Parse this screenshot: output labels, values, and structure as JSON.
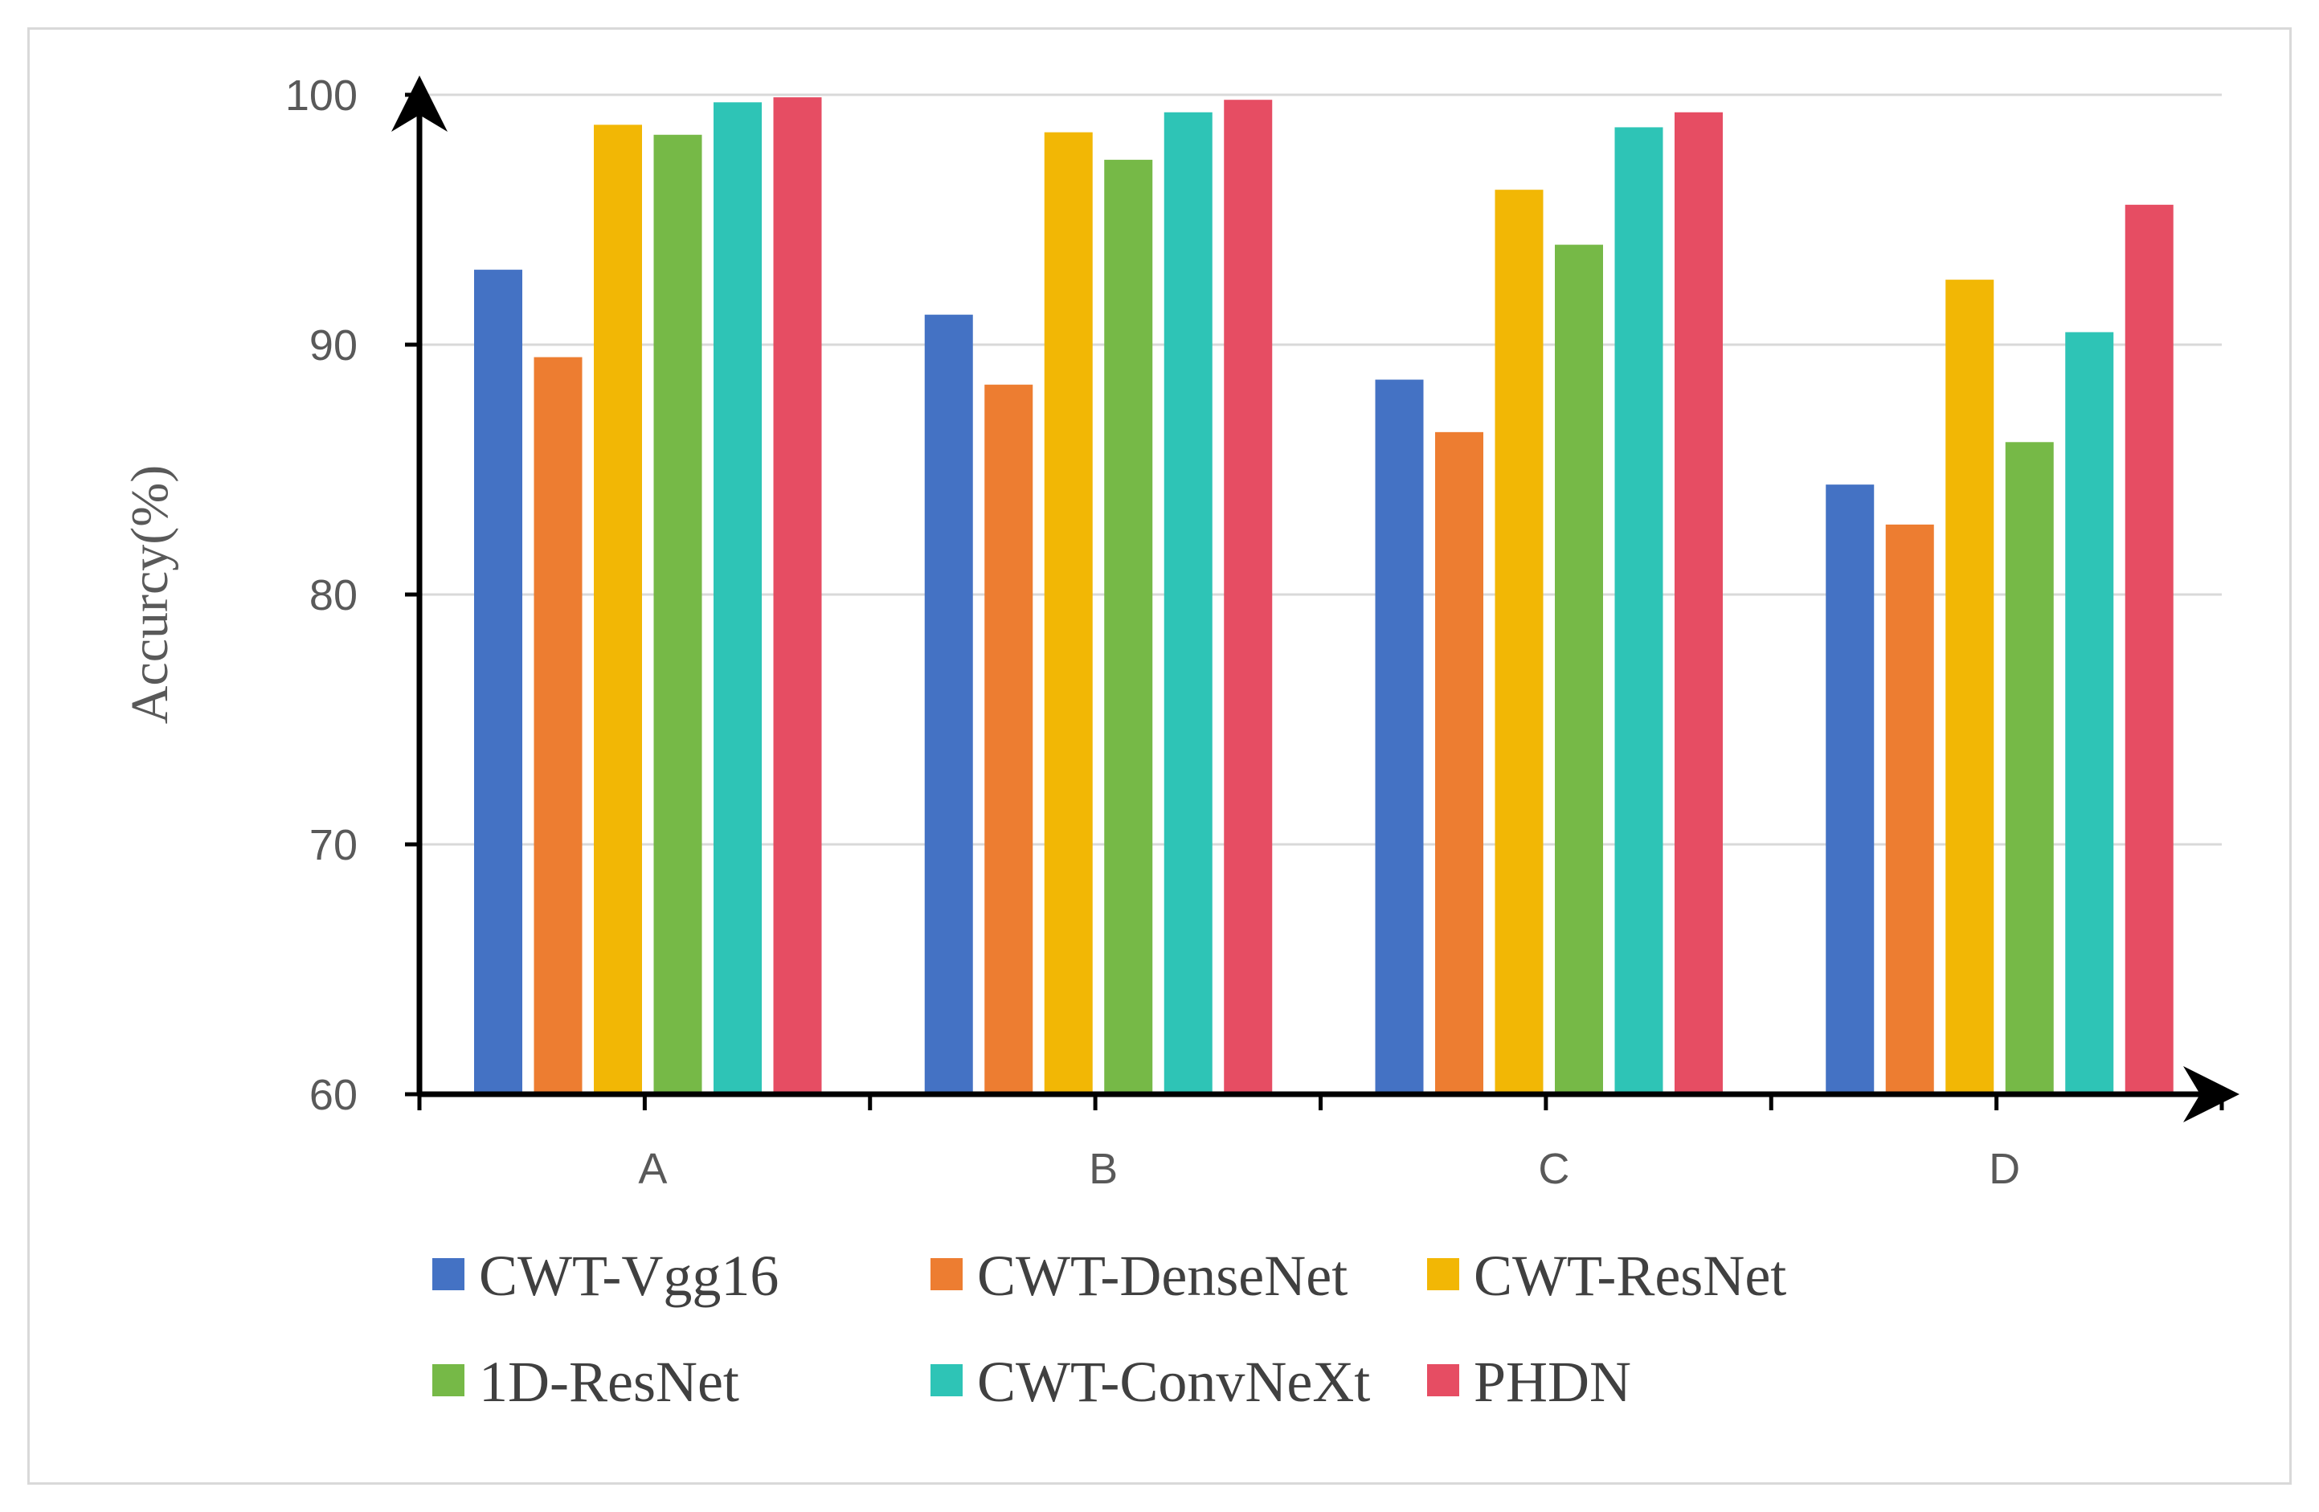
{
  "chart_data": {
    "type": "bar",
    "title": "",
    "xlabel": "",
    "ylabel": "Accurcy(%)",
    "ylim": [
      60,
      100
    ],
    "yticks": [
      60,
      70,
      80,
      90,
      100
    ],
    "grid": true,
    "legend_position": "bottom",
    "categories": [
      "A",
      "B",
      "C",
      "D"
    ],
    "series": [
      {
        "name": "CWT-Vgg16",
        "color": "#4472c4",
        "values": [
          93.0,
          91.2,
          88.6,
          84.4
        ]
      },
      {
        "name": "CWT-DenseNet",
        "color": "#ed7d31",
        "values": [
          89.5,
          88.4,
          86.5,
          82.8
        ]
      },
      {
        "name": "CWT-ResNet",
        "color": "#f2b705",
        "values": [
          98.8,
          98.5,
          96.2,
          92.6
        ]
      },
      {
        "name": "1D-ResNet",
        "color": "#76b947",
        "values": [
          98.4,
          97.4,
          94.0,
          86.1
        ]
      },
      {
        "name": "CWT-ConvNeXt",
        "color": "#2ec4b6",
        "values": [
          99.7,
          99.3,
          98.7,
          90.5
        ]
      },
      {
        "name": "PHDN",
        "color": "#e64d63",
        "values": [
          99.9,
          99.8,
          99.3,
          95.6
        ]
      }
    ]
  }
}
